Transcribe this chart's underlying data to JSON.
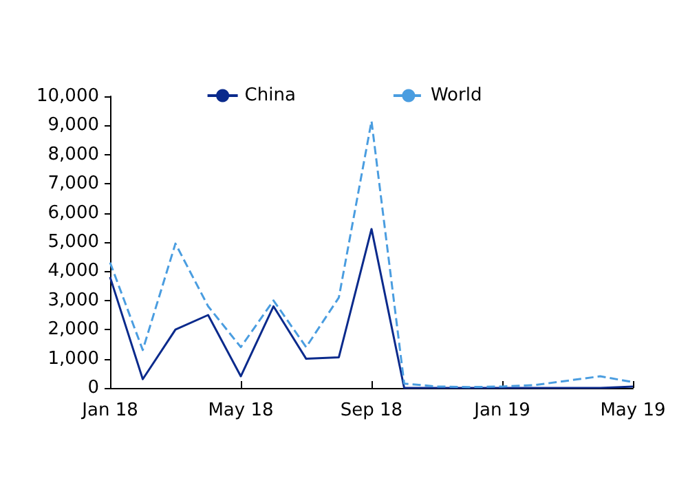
{
  "chart_data": {
    "type": "line",
    "categories": [
      "Jan 18",
      null,
      null,
      null,
      "May 18",
      null,
      null,
      null,
      "Sep 18",
      null,
      null,
      null,
      "Jan 19",
      null,
      null,
      null,
      "May 19"
    ],
    "series": [
      {
        "name": "China",
        "color": "#0a2a8c",
        "line_style": "solid",
        "values": [
          3800,
          300,
          2000,
          2500,
          400,
          2800,
          1000,
          1050,
          5450,
          0,
          0,
          0,
          0,
          0,
          0,
          0,
          50
        ]
      },
      {
        "name": "World",
        "color": "#4a9de0",
        "line_style": "dashed",
        "values": [
          4300,
          1300,
          4950,
          2800,
          1400,
          3000,
          1400,
          3100,
          9150,
          150,
          50,
          30,
          50,
          100,
          250,
          400,
          200
        ]
      }
    ],
    "ylim": [
      0,
      10000
    ],
    "yticks": [
      {
        "value": 0,
        "label": "0"
      },
      {
        "value": 1000,
        "label": "1,000"
      },
      {
        "value": 2000,
        "label": "2,000"
      },
      {
        "value": 3000,
        "label": "3,000"
      },
      {
        "value": 4000,
        "label": "4,000"
      },
      {
        "value": 5000,
        "label": "5,000"
      },
      {
        "value": 6000,
        "label": "6,000"
      },
      {
        "value": 7000,
        "label": "7,000"
      },
      {
        "value": 8000,
        "label": "8,000"
      },
      {
        "value": 9000,
        "label": "9,000"
      },
      {
        "value": 10000,
        "label": "10,000"
      }
    ],
    "grid": false,
    "legend": "top",
    "marker": "none"
  }
}
